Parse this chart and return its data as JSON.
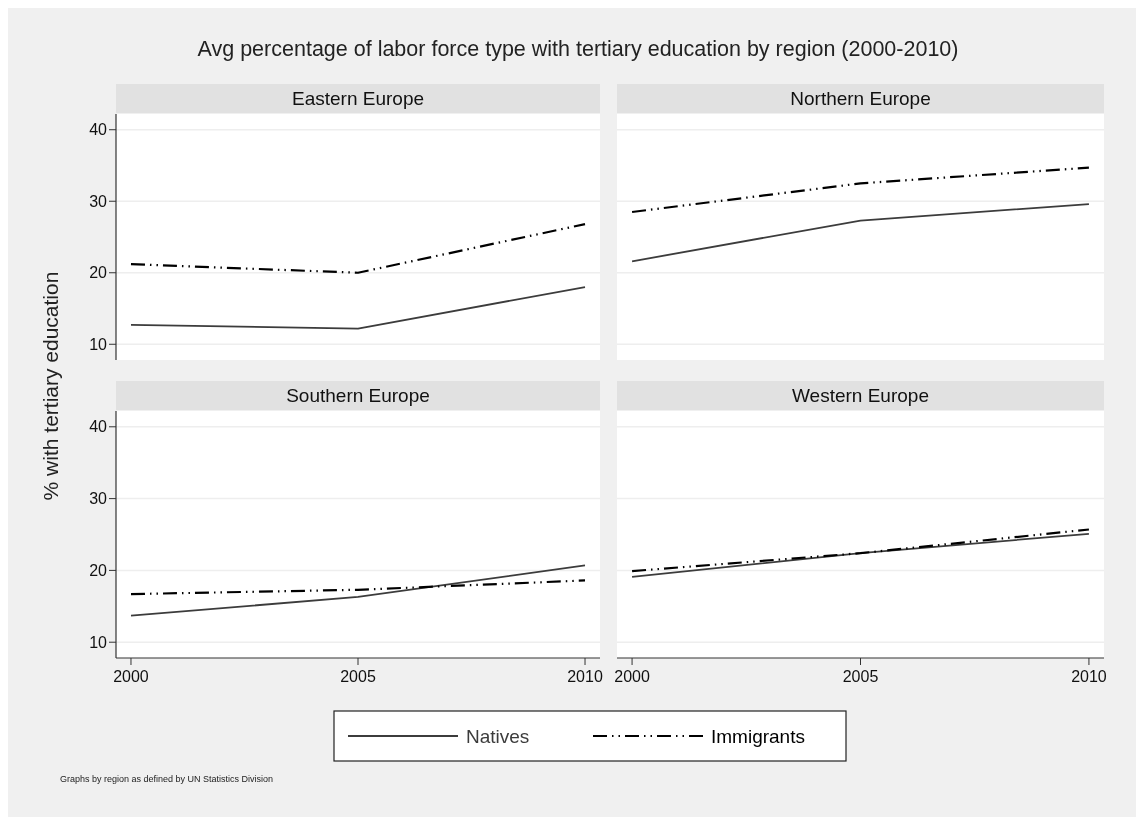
{
  "chart_data": [
    {
      "type": "line",
      "title": "Eastern Europe",
      "ylabel": "% with tertiary education",
      "annotations": [
        "Avg percentage of labor force type with tertiary education by region (2000-2010)",
        "Graphs by region as defined by UN Statistics Division"
      ],
      "x": [
        2000,
        2005,
        2010
      ],
      "xlim": [
        1999.67,
        2010.33
      ],
      "ylim": [
        7.8,
        42.2
      ],
      "yticks": [
        10,
        20,
        30,
        40
      ],
      "grid": "y",
      "tick_labels": "y",
      "legend": "bottom",
      "marker": "none",
      "series": [
        {
          "name": "Natives",
          "color": "#3c3c3c",
          "line_style": "solid",
          "values": [
            12.7,
            12.2,
            18.0
          ]
        },
        {
          "name": "Immigrants",
          "color": "#000000",
          "line_style": "dashed",
          "values": [
            21.2,
            20.0,
            26.8
          ]
        }
      ]
    },
    {
      "type": "line",
      "title": "Northern Europe",
      "x": [
        2000,
        2005,
        2010
      ],
      "xlim": [
        1999.67,
        2010.33
      ],
      "ylim": [
        7.8,
        42.2
      ],
      "yticks": [
        10,
        20,
        30,
        40
      ],
      "grid": "y",
      "tick_labels": false,
      "marker": "none",
      "series": [
        {
          "color": "#3c3c3c",
          "line_style": "solid",
          "values": [
            21.6,
            27.3,
            29.6
          ]
        },
        {
          "color": "#000000",
          "line_style": "dashed",
          "values": [
            28.5,
            32.5,
            34.7
          ]
        }
      ]
    },
    {
      "type": "line",
      "title": "Southern Europe",
      "x": [
        2000,
        2005,
        2010
      ],
      "xlim": [
        1999.67,
        2010.33
      ],
      "xticks": [
        2000,
        2005,
        2010
      ],
      "ylim": [
        7.8,
        42.2
      ],
      "yticks": [
        10,
        20,
        30,
        40
      ],
      "grid": "y",
      "marker": "none",
      "series": [
        {
          "color": "#3c3c3c",
          "line_style": "solid",
          "values": [
            13.7,
            16.3,
            20.7
          ]
        },
        {
          "color": "#000000",
          "line_style": "dashed",
          "values": [
            16.7,
            17.3,
            18.6
          ]
        }
      ]
    },
    {
      "type": "line",
      "title": "Western Europe",
      "x": [
        2000,
        2005,
        2010
      ],
      "xlim": [
        1999.67,
        2010.33
      ],
      "xticks": [
        2000,
        2005,
        2010
      ],
      "ylim": [
        7.8,
        42.2
      ],
      "yticks": [
        10,
        20,
        30,
        40
      ],
      "grid": "y",
      "tick_labels": "x",
      "marker": "none",
      "series": [
        {
          "color": "#3c3c3c",
          "line_style": "solid",
          "values": [
            19.1,
            22.4,
            25.1
          ]
        },
        {
          "color": "#000000",
          "line_style": "dashed",
          "values": [
            19.9,
            22.4,
            25.7
          ]
        }
      ]
    }
  ]
}
